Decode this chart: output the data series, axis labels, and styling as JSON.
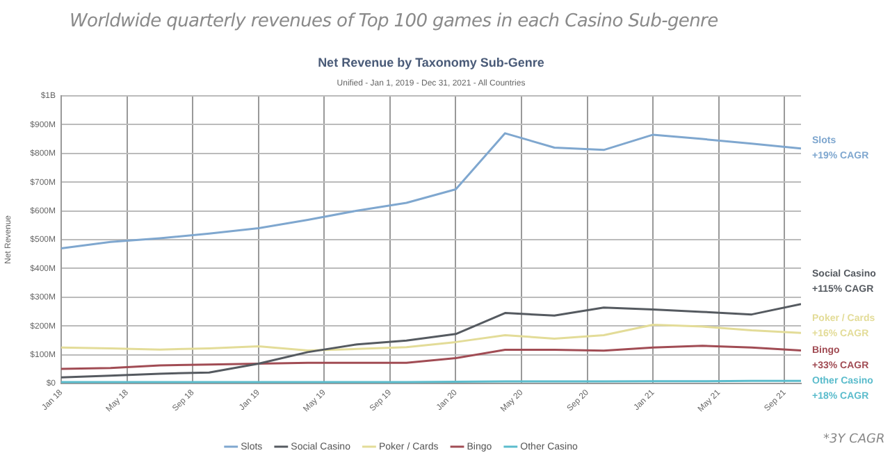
{
  "chart_data": {
    "type": "line",
    "title": "Worldwide quarterly revenues of Top 100 games in each Casino Sub-genre",
    "subtitle": "Net Revenue by Taxonomy Sub-Genre",
    "ylabel": "Net Revenue",
    "x": [
      "2018-01",
      "2018-04",
      "2018-07",
      "2018-10",
      "2019-01",
      "2019-04",
      "2019-07",
      "2019-10",
      "2020-01",
      "2020-04",
      "2020-07",
      "2020-10",
      "2021-01",
      "2021-04",
      "2021-07",
      "2021-10"
    ],
    "series": [
      {
        "name": "Slots",
        "color": "#7fa7cf",
        "values": [
          470000000,
          492000000,
          505000000,
          521000000,
          540000000,
          569000000,
          601000000,
          628000000,
          675000000,
          870000000,
          820000000,
          812000000,
          865000000,
          850000000,
          834000000,
          817000000
        ]
      },
      {
        "name": "Social Casino",
        "color": "#555a60",
        "values": [
          21000000,
          27000000,
          34000000,
          38000000,
          69000000,
          109000000,
          136000000,
          149000000,
          172000000,
          245000000,
          236000000,
          264000000,
          257000000,
          249000000,
          240000000,
          276000000
        ]
      },
      {
        "name": "Poker / Cards",
        "color": "#e3dc98",
        "values": [
          125000000,
          122000000,
          118000000,
          122000000,
          129000000,
          115000000,
          120000000,
          126000000,
          144000000,
          168000000,
          156000000,
          168000000,
          204000000,
          198000000,
          185000000,
          176000000
        ]
      },
      {
        "name": "Bingo",
        "color": "#a14c54",
        "values": [
          51000000,
          54000000,
          63000000,
          66000000,
          69000000,
          72000000,
          72000000,
          72000000,
          88000000,
          117000000,
          117000000,
          114000000,
          125000000,
          131000000,
          125000000,
          115000000
        ]
      },
      {
        "name": "Other Casino",
        "color": "#5bbccc",
        "values": [
          5000000,
          5000000,
          5000000,
          5000000,
          5000000,
          5000000,
          5000000,
          5000000,
          6000000,
          7000000,
          7000000,
          7000000,
          8000000,
          8000000,
          9000000,
          9000000
        ]
      }
    ],
    "xlim": [
      "2018-01",
      "2021-10"
    ],
    "xticks": [
      {
        "value": "2018-01",
        "label": "Jan 18"
      },
      {
        "value": "2018-05",
        "label": "May 18"
      },
      {
        "value": "2018-09",
        "label": "Sep 18"
      },
      {
        "value": "2019-01",
        "label": "Jan 19"
      },
      {
        "value": "2019-05",
        "label": "May 19"
      },
      {
        "value": "2019-09",
        "label": "Sep 19"
      },
      {
        "value": "2020-01",
        "label": "Jan 20"
      },
      {
        "value": "2020-05",
        "label": "May 20"
      },
      {
        "value": "2020-09",
        "label": "Sep 20"
      },
      {
        "value": "2021-01",
        "label": "Jan 21"
      },
      {
        "value": "2021-05",
        "label": "May 21"
      },
      {
        "value": "2021-09",
        "label": "Sep 21"
      }
    ],
    "ylim": [
      0,
      1000000000
    ],
    "yticks": [
      {
        "value": 0,
        "label": "$0"
      },
      {
        "value": 100000000,
        "label": "$100M"
      },
      {
        "value": 200000000,
        "label": "$200M"
      },
      {
        "value": 300000000,
        "label": "$300M"
      },
      {
        "value": 400000000,
        "label": "$400M"
      },
      {
        "value": 500000000,
        "label": "$500M"
      },
      {
        "value": 600000000,
        "label": "$600M"
      },
      {
        "value": 700000000,
        "label": "$700M"
      },
      {
        "value": 800000000,
        "label": "$800M"
      },
      {
        "value": 900000000,
        "label": "$900M"
      },
      {
        "value": 1000000000,
        "label": "$1B"
      }
    ],
    "grid": true,
    "legend": "bottom",
    "marker": "none",
    "line_style": "solid",
    "annotations": [
      "Unified - Jan 1, 2019 - Dec 31, 2021 - All Countries",
      "Slots\n+19% CAGR",
      "Social Casino\n+115% CAGR",
      "Poker / Cards\n+16% CAGR",
      "Bingo\n+33% CAGR",
      "Other Casino\n+18% CAGR",
      "*3Y CAGR"
    ]
  }
}
